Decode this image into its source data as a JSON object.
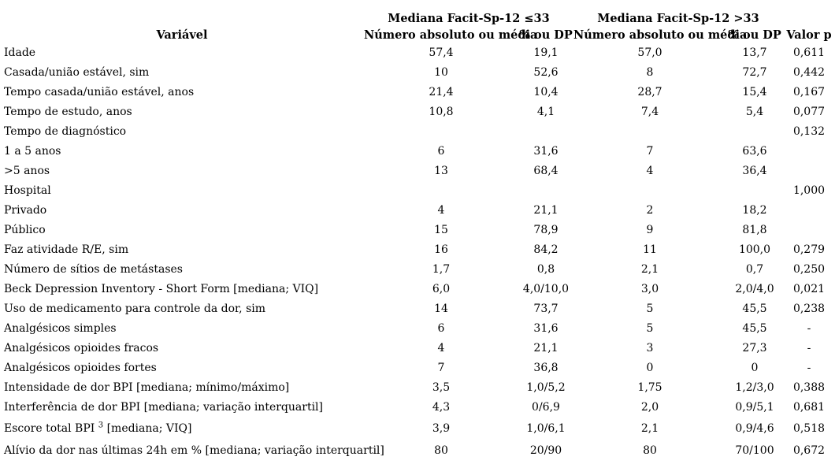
{
  "colors": {
    "background": "#ffffff",
    "text": "#000000"
  },
  "table": {
    "group_headers": [
      "Mediana Facit-Sp-12 ≤33",
      "Mediana Facit-Sp-12 >33"
    ],
    "column_headers": {
      "variable": "Variável",
      "g1_n": "Número absoluto ou média",
      "g1_pct": "% ou DP",
      "g2_n": "Número absoluto ou média",
      "g2_pct": "% ou DP",
      "p": "Valor p"
    },
    "rows": [
      {
        "variable": "Idade",
        "g1_n": "57,4",
        "g1_pct": "19,1",
        "g2_n": "57,0",
        "g2_pct": "13,7",
        "p": "0,611"
      },
      {
        "variable": "Casada/união estável, sim",
        "g1_n": "10",
        "g1_pct": "52,6",
        "g2_n": "8",
        "g2_pct": "72,7",
        "p": "0,442"
      },
      {
        "variable": "Tempo casada/união estável, anos",
        "g1_n": "21,4",
        "g1_pct": "10,4",
        "g2_n": "28,7",
        "g2_pct": "15,4",
        "p": "0,167"
      },
      {
        "variable": "Tempo de estudo, anos",
        "g1_n": "10,8",
        "g1_pct": "4,1",
        "g2_n": "7,4",
        "g2_pct": "5,4",
        "p": "0,077"
      },
      {
        "variable": "Tempo de diagnóstico",
        "g1_n": "",
        "g1_pct": "",
        "g2_n": "",
        "g2_pct": "",
        "p": "0,132"
      },
      {
        "variable": "1 a 5 anos",
        "g1_n": "6",
        "g1_pct": "31,6",
        "g2_n": "7",
        "g2_pct": "63,6",
        "p": ""
      },
      {
        "variable": ">5 anos",
        "g1_n": "13",
        "g1_pct": "68,4",
        "g2_n": "4",
        "g2_pct": "36,4",
        "p": ""
      },
      {
        "variable": "Hospital",
        "g1_n": "",
        "g1_pct": "",
        "g2_n": "",
        "g2_pct": "",
        "p": "1,000"
      },
      {
        "variable": "Privado",
        "g1_n": "4",
        "g1_pct": "21,1",
        "g2_n": "2",
        "g2_pct": "18,2",
        "p": ""
      },
      {
        "variable": "Público",
        "g1_n": "15",
        "g1_pct": "78,9",
        "g2_n": "9",
        "g2_pct": "81,8",
        "p": ""
      },
      {
        "variable": "Faz atividade R/E, sim",
        "g1_n": "16",
        "g1_pct": "84,2",
        "g2_n": "11",
        "g2_pct": "100,0",
        "p": "0,279"
      },
      {
        "variable": "Número de sítios de metástases",
        "g1_n": "1,7",
        "g1_pct": "0,8",
        "g2_n": "2,1",
        "g2_pct": "0,7",
        "p": "0,250"
      },
      {
        "variable": "Beck Depression Inventory - Short Form [mediana; VIQ]",
        "g1_n": "6,0",
        "g1_pct": "4,0/10,0",
        "g2_n": "3,0",
        "g2_pct": "2,0/4,0",
        "p": "0,021"
      },
      {
        "variable": "Uso de medicamento para controle da dor, sim",
        "g1_n": "14",
        "g1_pct": "73,7",
        "g2_n": "5",
        "g2_pct": "45,5",
        "p": "0,238"
      },
      {
        "variable": "Analgésicos simples",
        "g1_n": "6",
        "g1_pct": "31,6",
        "g2_n": "5",
        "g2_pct": "45,5",
        "p": "-"
      },
      {
        "variable": "Analgésicos opioides fracos",
        "g1_n": "4",
        "g1_pct": "21,1",
        "g2_n": "3",
        "g2_pct": "27,3",
        "p": "-"
      },
      {
        "variable": "Analgésicos opioides fortes",
        "g1_n": "7",
        "g1_pct": "36,8",
        "g2_n": "0",
        "g2_pct": "0",
        "p": "-"
      },
      {
        "variable": "Intensidade de dor BPI [mediana; mínimo/máximo]",
        "g1_n": "3,5",
        "g1_pct": "1,0/5,2",
        "g2_n": "1,75",
        "g2_pct": "1,2/3,0",
        "p": "0,388"
      },
      {
        "variable": "Interferência de dor BPI [mediana; variação interquartil]",
        "g1_n": "4,3",
        "g1_pct": "0/6,9",
        "g2_n": "2,0",
        "g2_pct": "0,9/5,1",
        "p": "0,681"
      },
      {
        "variable": "Escore total BPI ",
        "variable_sup": "3",
        "variable_after": " [mediana; VIQ]",
        "g1_n": "3,9",
        "g1_pct": "1,0/6,1",
        "g2_n": "2,1",
        "g2_pct": "0,9/4,6",
        "p": "0,518"
      },
      {
        "variable": "Alívio da dor nas últimas 24h em % [mediana; variação interquartil]",
        "g1_n": "80",
        "g1_pct": "20/90",
        "g2_n": "80",
        "g2_pct": "70/100",
        "p": "0,672"
      }
    ]
  }
}
